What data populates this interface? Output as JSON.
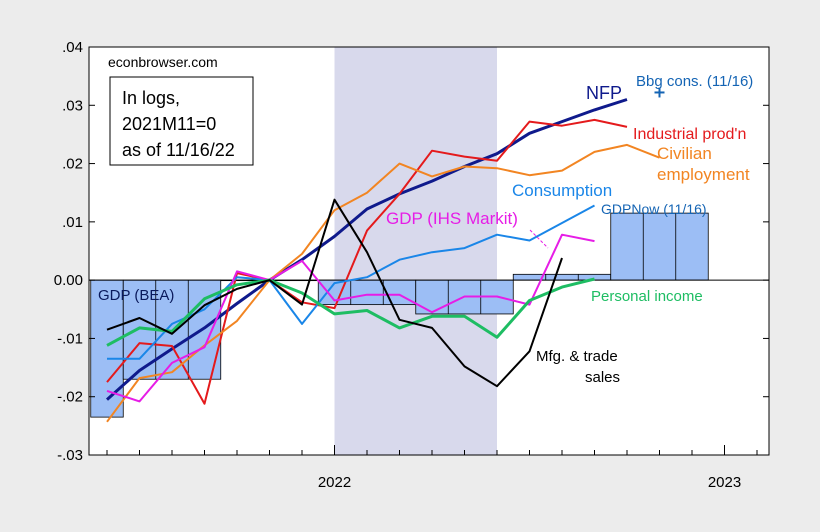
{
  "chart_data": {
    "type": "line",
    "source": "econbrowser.com",
    "note": [
      "In logs,",
      "2021M11=0",
      "as of 11/16/22"
    ],
    "x": [
      "2021-06",
      "2021-07",
      "2021-08",
      "2021-09",
      "2021-10",
      "2021-11",
      "2021-12",
      "2022-01",
      "2022-02",
      "2022-03",
      "2022-04",
      "2022-05",
      "2022-06",
      "2022-07",
      "2022-08",
      "2022-09",
      "2022-10",
      "2022-11",
      "2022-12",
      "2023-01",
      "2023-02"
    ],
    "xticks": [
      "2022",
      "2023"
    ],
    "ylim": [
      -0.03,
      0.04
    ],
    "yticks": [
      ".04",
      ".03",
      ".02",
      ".01",
      "0.00",
      "-.01",
      "-.02",
      "-.03"
    ],
    "recession_shading": {
      "from": "2022-01",
      "to": "2022-06"
    },
    "bars": [
      {
        "name": "GDP (BEA)",
        "color": "#9cbef5",
        "values": [
          {
            "from": "2021-06",
            "to": "2021-07",
            "value": -0.0235
          },
          {
            "from": "2021-07",
            "to": "2021-10",
            "value": -0.017
          },
          {
            "from": "2021-10",
            "to": "2022-01",
            "value": 0.0
          },
          {
            "from": "2022-01",
            "to": "2022-04",
            "value": -0.0042
          },
          {
            "from": "2022-04",
            "to": "2022-07",
            "value": -0.0058
          },
          {
            "from": "2022-07",
            "to": "2022-10",
            "value": 0.001
          }
        ]
      },
      {
        "name": "GDPNow (11/16)",
        "color": "#9cbef5",
        "values": [
          {
            "from": "2022-10",
            "to": "2023-01",
            "value": 0.0115
          }
        ]
      }
    ],
    "series": [
      {
        "name": "NFP",
        "color": "#0f1a8c",
        "width": 3,
        "values": [
          -0.0205,
          -0.0155,
          -0.0118,
          -0.0082,
          -0.004,
          0,
          0.0035,
          0.0075,
          0.0122,
          0.0148,
          0.017,
          0.0195,
          0.0217,
          0.0252,
          0.0272,
          0.0292,
          0.031,
          null,
          null,
          null,
          null
        ]
      },
      {
        "name": "Industrial prod'n",
        "color": "#e41a1c",
        "width": 2,
        "values": [
          -0.0175,
          -0.0108,
          -0.0113,
          -0.0212,
          0.0012,
          0,
          -0.0038,
          -0.0048,
          0.0085,
          0.0148,
          0.0222,
          0.0212,
          0.0205,
          0.0272,
          0.0265,
          0.0275,
          0.0263,
          null,
          null,
          null,
          null
        ]
      },
      {
        "name": "Civilian employment",
        "color": "#f28522",
        "width": 2,
        "values": [
          -0.0243,
          -0.0168,
          -0.0158,
          -0.0112,
          -0.007,
          0,
          0.0045,
          0.012,
          0.015,
          0.02,
          0.0178,
          0.0195,
          0.0192,
          0.018,
          0.0188,
          0.022,
          0.0232,
          0.021,
          null,
          null,
          null
        ]
      },
      {
        "name": "Consumption",
        "color": "#1a86e8",
        "width": 2,
        "values": [
          -0.0135,
          -0.0135,
          -0.0075,
          -0.005,
          0.0005,
          0,
          -0.0075,
          -0.0005,
          0.0005,
          0.0035,
          0.0048,
          0.0055,
          0.0078,
          0.0068,
          0.0098,
          0.0128,
          null,
          null,
          null,
          null,
          null
        ]
      },
      {
        "name": "GDP (IHS Markit)",
        "color": "#e61de6",
        "width": 2,
        "values": [
          -0.019,
          -0.0208,
          -0.0142,
          -0.0115,
          0.0015,
          0,
          0.0033,
          -0.0035,
          -0.0025,
          -0.0025,
          -0.0055,
          -0.0028,
          -0.0028,
          -0.0042,
          0.0078,
          0.0067,
          null,
          null,
          null,
          null,
          null
        ]
      },
      {
        "name": "Personal income",
        "color": "#1ebd63",
        "width": 3,
        "values": [
          -0.0112,
          -0.0082,
          -0.0088,
          -0.0032,
          -0.0008,
          0,
          -0.0022,
          -0.0058,
          -0.0052,
          -0.0082,
          -0.0062,
          -0.0062,
          -0.0098,
          -0.0035,
          -0.0012,
          0.0002,
          null,
          null,
          null,
          null,
          null
        ]
      },
      {
        "name": "Mfg. & trade sales",
        "color": "#000000",
        "width": 2,
        "values": [
          -0.0085,
          -0.0065,
          -0.0092,
          -0.0043,
          -0.0015,
          0,
          -0.0042,
          0.0138,
          0.0048,
          -0.0068,
          -0.0082,
          -0.0148,
          -0.0182,
          -0.0122,
          0.0038,
          null,
          null,
          null,
          null,
          null,
          null
        ]
      }
    ],
    "points": [
      {
        "name": "Bbg cons. (11/16)",
        "x": "2022-11",
        "value": 0.0322,
        "color": "#1464b4",
        "marker": "+"
      }
    ],
    "labels": {
      "nfp": "NFP",
      "bbg": "Bbg cons. (11/16)",
      "ip": "Industrial prod'n",
      "civ1": "Civilian",
      "civ2": "employment",
      "cons": "Consumption",
      "ihs": "GDP (IHS Markit)",
      "gdpnow": "GDPNow (11/16)",
      "gdpbea": "GDP (BEA)",
      "pi": "Personal income",
      "mfg1": "Mfg. & trade",
      "mfg2": "sales"
    }
  }
}
